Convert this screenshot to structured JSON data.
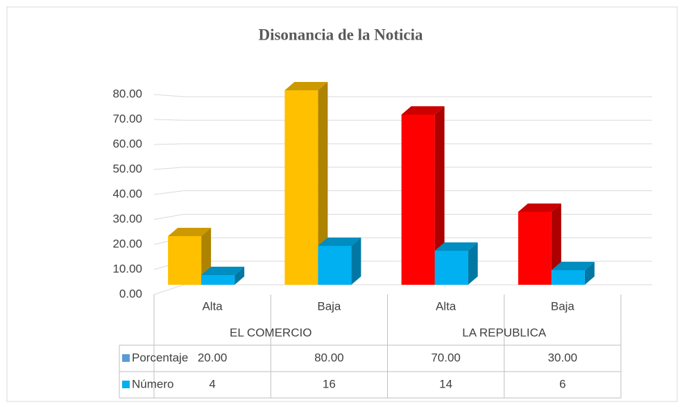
{
  "chart_data": {
    "type": "bar3d",
    "title": "Disonancia de la Noticia",
    "categories": [
      "Alta",
      "Baja",
      "Alta",
      "Baja"
    ],
    "groups": [
      "EL COMERCIO",
      "LA REPUBLICA"
    ],
    "series": [
      {
        "name": "Porcentaje",
        "color": "#5b9bd5",
        "point_colors": [
          "#ffc000",
          "#ffc000",
          "#ff0000",
          "#ff0000"
        ],
        "values": [
          20,
          80,
          70,
          30
        ],
        "value_labels": [
          "20.00",
          "80.00",
          "70.00",
          "30.00"
        ]
      },
      {
        "name": "Número",
        "color": "#00b0f0",
        "values": [
          4,
          16,
          14,
          6
        ]
      }
    ],
    "ylim": [
      0,
      80
    ],
    "yticks": [
      {
        "value": 0,
        "label": "0.00"
      },
      {
        "value": 10,
        "label": "10.00"
      },
      {
        "value": 20,
        "label": "20.00"
      },
      {
        "value": 30,
        "label": "30.00"
      },
      {
        "value": 40,
        "label": "40.00"
      },
      {
        "value": 50,
        "label": "50.00"
      },
      {
        "value": 60,
        "label": "60.00"
      },
      {
        "value": 70,
        "label": "70.00"
      },
      {
        "value": 80,
        "label": "80.00"
      }
    ],
    "grid": true,
    "data_table": true
  }
}
